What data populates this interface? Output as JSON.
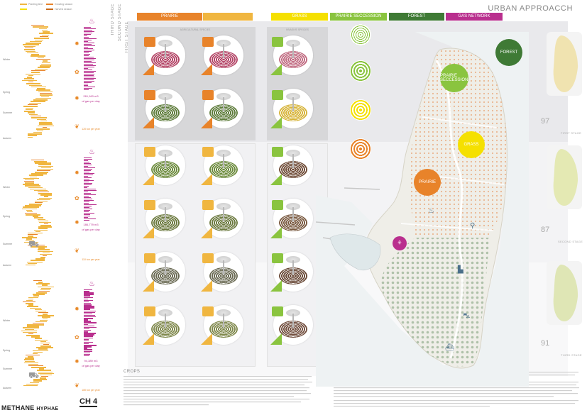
{
  "title": "METHANE",
  "subtitle": "HYPHAE",
  "chapter": "CH 4",
  "page_title": "URBAN APPROACCH",
  "stage_labels": {
    "third": "THIRD STAGE",
    "second": "SECOND STAGE",
    "first": "FIRST STAGE"
  },
  "header_bars": [
    {
      "label": "PRAIRIE",
      "color": "#e8832a"
    },
    {
      "label": "",
      "color": "#f0b640"
    },
    {
      "label": "GRASS",
      "color": "#f5e000"
    },
    {
      "label": "PRAIRIE SECCESSION",
      "color": "#8ac43f"
    },
    {
      "label": "FOREST",
      "color": "#3f7a35"
    },
    {
      "label": "GAS NETWORK",
      "color": "#b92f8e"
    }
  ],
  "left_legend": [
    "Planting time",
    "Growing season",
    "Harvest season"
  ],
  "seasons": [
    "Winter",
    "Spring",
    "Summer",
    "Autumn"
  ],
  "gas_values": [
    {
      "amount": "261,160 m3",
      "unit": "of gas per day",
      "sub": "120 ton per year"
    },
    {
      "amount": "186,779 m3",
      "unit": "of gas per day",
      "sub": "110 ton per year"
    },
    {
      "amount": "94,389 m3",
      "unit": "of gas per day",
      "sub": "180 ton per year"
    }
  ],
  "panels": {
    "agricultural": "AGRICULTURAL SPECIES",
    "invasive": "INVASIVE SPECIES"
  },
  "crops_title": "CROPS",
  "map_markers": [
    {
      "label": "FOREST",
      "color": "#3f7a35"
    },
    {
      "label": "PRAIRIE SECCESSION",
      "color": "#8ac43f"
    },
    {
      "label": "GRASS",
      "color": "#f5e000"
    },
    {
      "label": "PRAIRIE",
      "color": "#e8832a"
    }
  ],
  "stages": [
    {
      "number": "97",
      "label": "FIRST STAGE"
    },
    {
      "number": "87",
      "label": "SECOND STAGE"
    },
    {
      "number": "91",
      "label": "THIRD STAGE"
    }
  ],
  "colors": {
    "orange": "#e8832a",
    "amber": "#f0b640",
    "yellow": "#f5e000",
    "green": "#8ac43f",
    "dark_green": "#3f7a35",
    "magenta": "#b92f8e"
  },
  "icons": [
    "sun-icon",
    "flame-icon",
    "leaf-icon",
    "wheelbarrow-icon",
    "fish-icon",
    "boot-icon",
    "car-icon",
    "ship-icon",
    "fire-hydrant-icon"
  ]
}
